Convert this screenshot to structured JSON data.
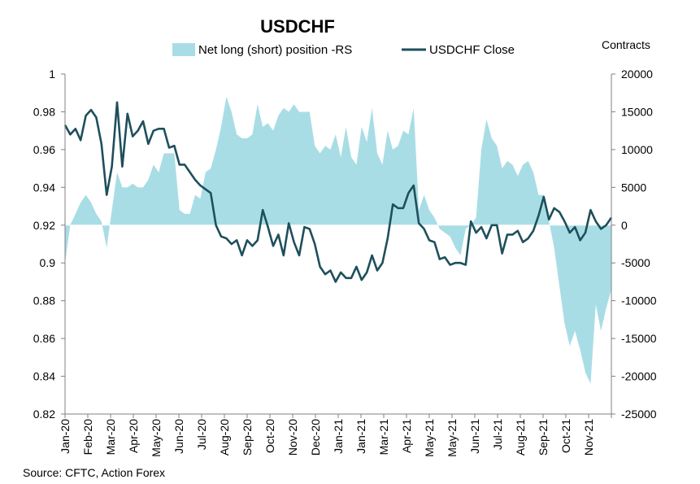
{
  "chart_data": {
    "type": "line",
    "title": "USDCHF",
    "right_axis_label": "Contracts",
    "source": "Source: CFTC, Action Forex",
    "colors": {
      "area": "#a9dde6",
      "line": "#1e4f5c"
    },
    "x_tick_labels": [
      "Jan-20",
      "Feb-20",
      "Mar-20",
      "Apr-20",
      "May-20",
      "Jun-20",
      "Jul-20",
      "Aug-20",
      "Sep-20",
      "Oct-20",
      "Nov-20",
      "Dec-20",
      "Jan-21",
      "Jan-21",
      "Mar-21",
      "Apr-21",
      "May-21",
      "May-21",
      "Jun-21",
      "Jul-21",
      "Aug-21",
      "Sep-21",
      "Oct-21",
      "Nov-21"
    ],
    "y_left": {
      "min": 0.82,
      "max": 1.0,
      "ticks": [
        "1",
        "0.98",
        "0.96",
        "0.94",
        "0.92",
        "0.9",
        "0.88",
        "0.86",
        "0.84",
        "0.82"
      ]
    },
    "y_right": {
      "min": -25000,
      "max": 20000,
      "ticks": [
        "20000",
        "15000",
        "10000",
        "5000",
        "0",
        "-5000",
        "-10000",
        "-15000",
        "-20000",
        "-25000"
      ]
    },
    "series": [
      {
        "name": "Net long (short) position -RS",
        "kind": "area",
        "axis": "right",
        "values": [
          -5000,
          0,
          1500,
          3000,
          4000,
          3000,
          1500,
          500,
          -3000,
          2000,
          7000,
          5000,
          5000,
          5500,
          5000,
          5000,
          6000,
          8000,
          7000,
          9500,
          9500,
          9500,
          2000,
          1500,
          1500,
          4000,
          3500,
          7000,
          7500,
          10000,
          13000,
          17000,
          15000,
          12000,
          11500,
          11500,
          12000,
          16000,
          13000,
          13500,
          12500,
          14500,
          15500,
          15000,
          16000,
          15000,
          15000,
          15000,
          10500,
          9500,
          10500,
          10000,
          12000,
          9000,
          13000,
          9000,
          8000,
          13000,
          11000,
          15500,
          9500,
          8000,
          12500,
          10000,
          10500,
          12500,
          12000,
          15500,
          2000,
          4000,
          2000,
          1000,
          -500,
          -1000,
          -1500,
          -3000,
          -4000,
          -500,
          0,
          1000,
          10000,
          14000,
          11500,
          10500,
          7500,
          8500,
          8000,
          6500,
          8000,
          8500,
          7000,
          4000,
          4000,
          500,
          -3000,
          -8000,
          -13000,
          -16000,
          -14000,
          -16500,
          -19500,
          -21000,
          -10500,
          -14000,
          -11000,
          -8500
        ],
        "legend_icon": "area-swatch"
      },
      {
        "name": "USDCHF Close",
        "kind": "line",
        "axis": "left",
        "values": [
          0.973,
          0.968,
          0.971,
          0.965,
          0.978,
          0.981,
          0.977,
          0.963,
          0.936,
          0.951,
          0.985,
          0.951,
          0.979,
          0.967,
          0.97,
          0.975,
          0.963,
          0.97,
          0.971,
          0.971,
          0.961,
          0.962,
          0.952,
          0.952,
          0.948,
          0.944,
          0.941,
          0.939,
          0.937,
          0.92,
          0.914,
          0.913,
          0.91,
          0.912,
          0.904,
          0.912,
          0.909,
          0.912,
          0.928,
          0.919,
          0.909,
          0.915,
          0.904,
          0.921,
          0.911,
          0.904,
          0.919,
          0.918,
          0.91,
          0.898,
          0.894,
          0.896,
          0.89,
          0.895,
          0.892,
          0.892,
          0.898,
          0.891,
          0.895,
          0.904,
          0.896,
          0.9,
          0.913,
          0.931,
          0.929,
          0.929,
          0.937,
          0.941,
          0.921,
          0.918,
          0.912,
          0.911,
          0.902,
          0.903,
          0.899,
          0.9,
          0.9,
          0.899,
          0.922,
          0.916,
          0.919,
          0.913,
          0.92,
          0.92,
          0.905,
          0.915,
          0.915,
          0.917,
          0.911,
          0.913,
          0.917,
          0.925,
          0.935,
          0.923,
          0.929,
          0.927,
          0.922,
          0.916,
          0.919,
          0.912,
          0.916,
          0.928,
          0.922,
          0.918,
          0.92,
          0.924
        ],
        "legend_icon": "line-swatch"
      }
    ]
  }
}
